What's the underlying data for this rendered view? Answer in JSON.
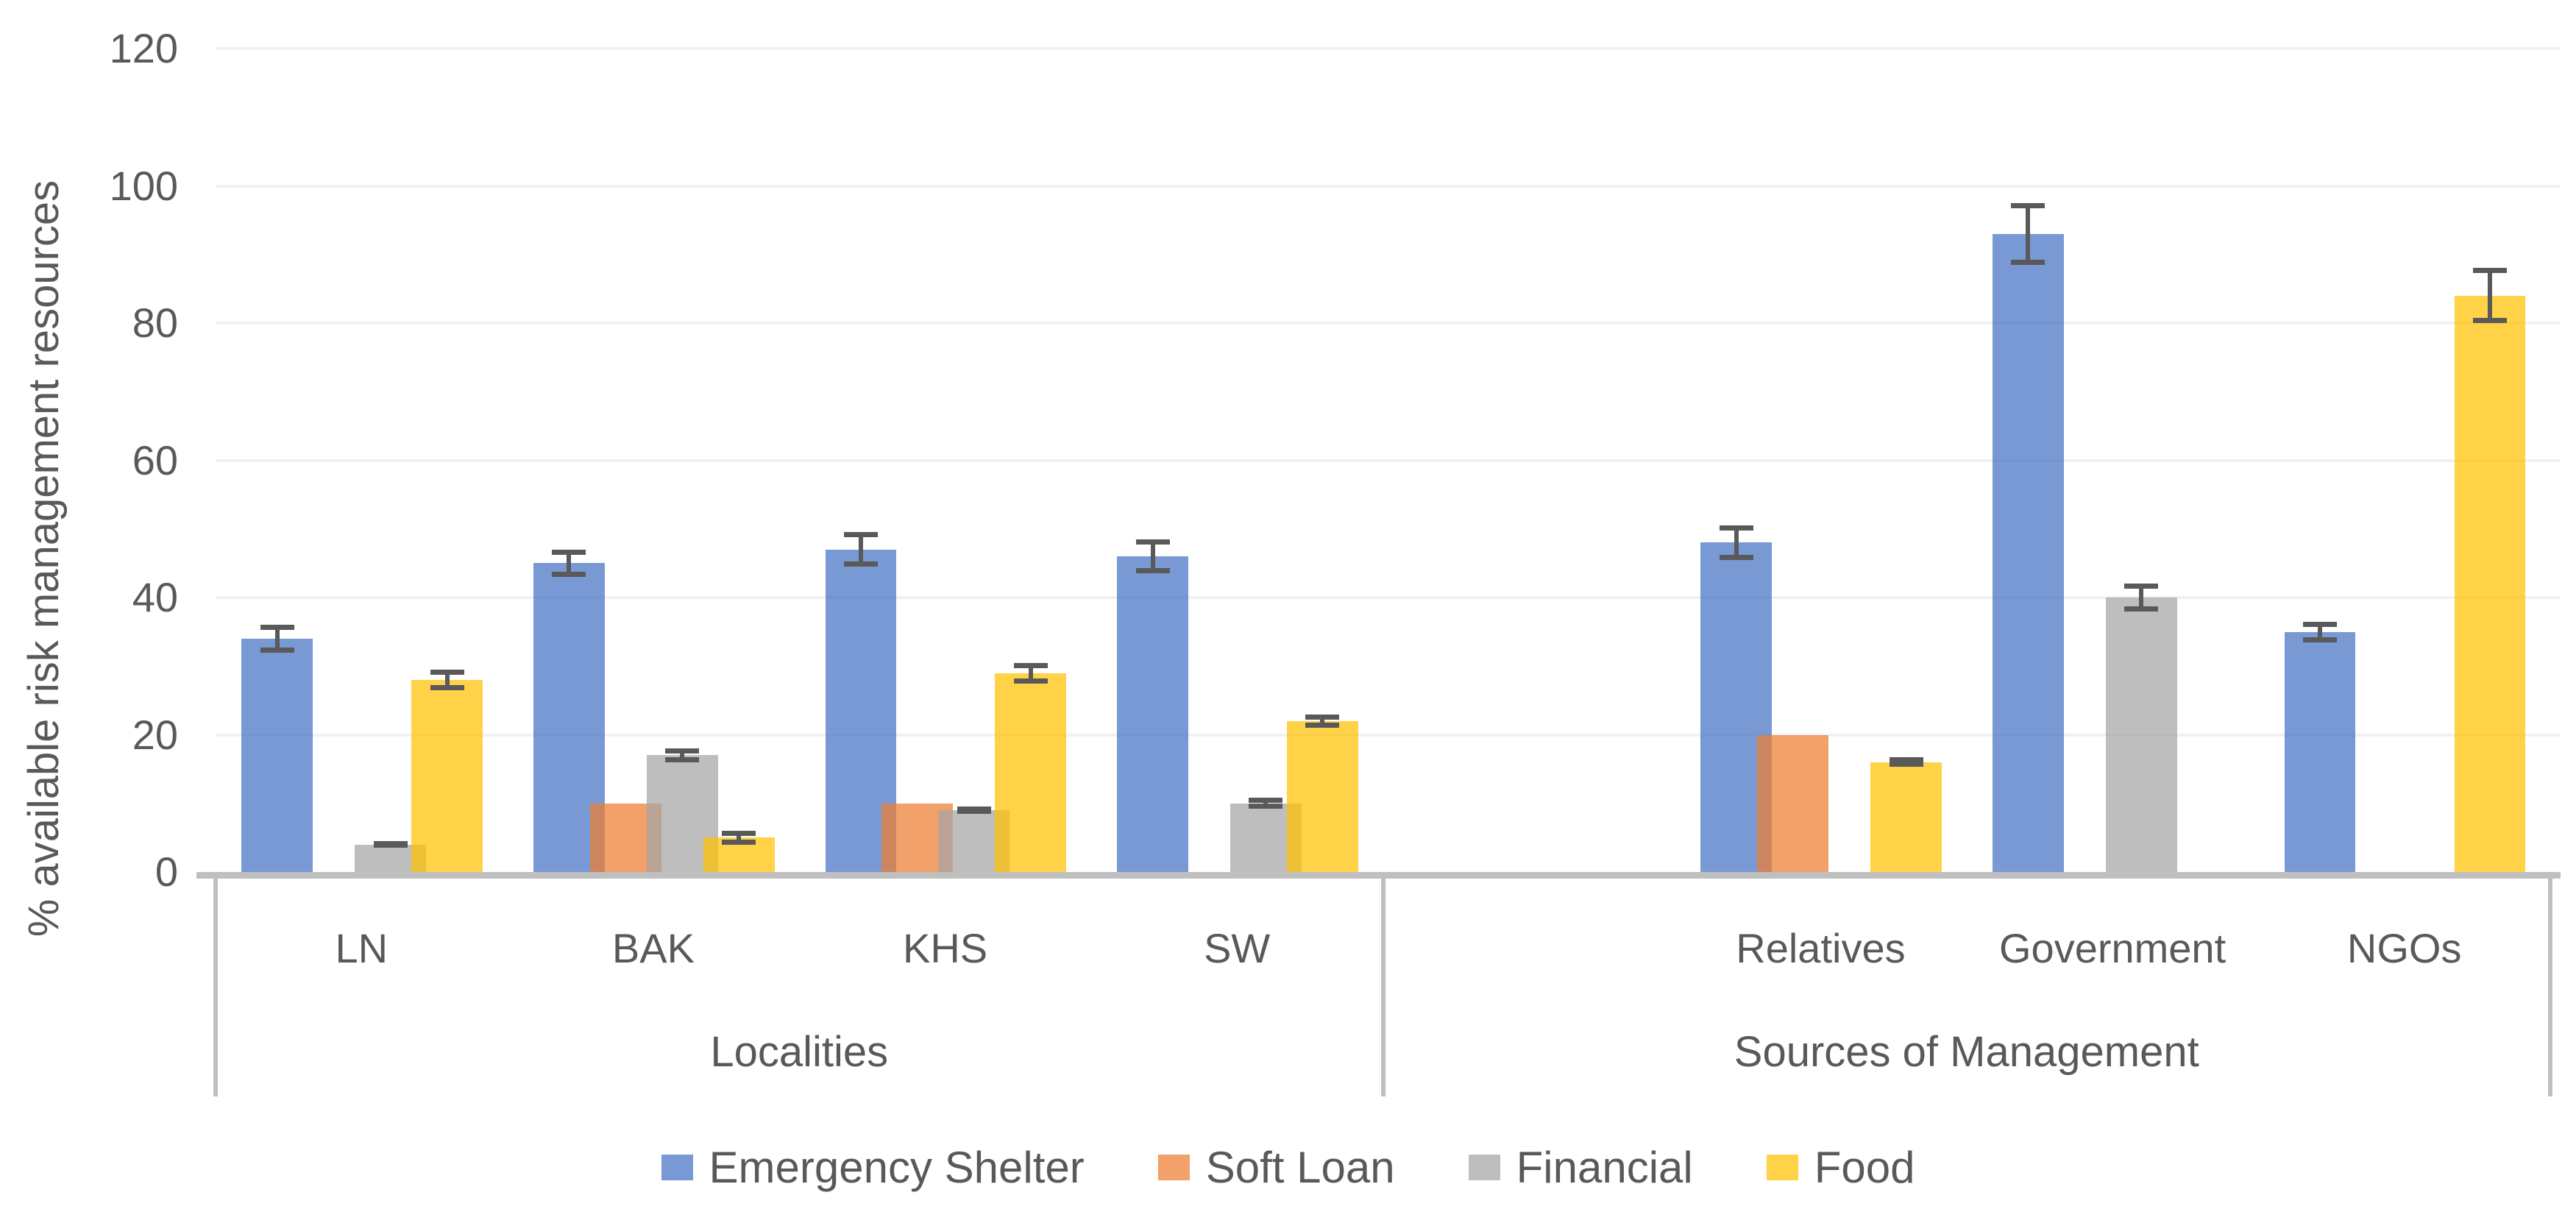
{
  "chart_data": {
    "type": "bar",
    "title": "",
    "ylabel": "% available risk management resources",
    "xlabel": "",
    "ylim": [
      0,
      120
    ],
    "yticks": [
      0,
      20,
      40,
      60,
      80,
      100,
      120
    ],
    "grid": "horizontal",
    "legend_position": "bottom",
    "categories": [
      "LN",
      "BAK",
      "KHS",
      "SW",
      "",
      "Relatives",
      "Government",
      "NGOs"
    ],
    "sections": [
      {
        "label": "Localities",
        "from": 0,
        "to": 3
      },
      {
        "label": "Sources of Management",
        "from": 4,
        "to": 7
      }
    ],
    "series": [
      {
        "name": "Emergency Shelter",
        "color": "#4472C4",
        "values": [
          34,
          45,
          47,
          46,
          null,
          48,
          93,
          35
        ],
        "errors": [
          2,
          2,
          2.5,
          2.5,
          null,
          2.5,
          4.5,
          1.5
        ]
      },
      {
        "name": "Soft Loan",
        "color": "#ED7D31",
        "values": [
          null,
          10,
          10,
          null,
          null,
          20,
          null,
          null
        ],
        "errors": [
          null,
          null,
          null,
          null,
          null,
          null,
          null,
          null
        ]
      },
      {
        "name": "Financial",
        "color": "#A5A5A5",
        "values": [
          4,
          17,
          9,
          10,
          null,
          null,
          40,
          null
        ],
        "errors": [
          0.5,
          1,
          0.5,
          0.8,
          null,
          null,
          2,
          null
        ]
      },
      {
        "name": "Food",
        "color": "#FFC000",
        "values": [
          28,
          5,
          29,
          22,
          null,
          16,
          null,
          84
        ],
        "errors": [
          1.5,
          1,
          1.5,
          1,
          null,
          0.7,
          null,
          4
        ]
      }
    ],
    "style": {
      "bar_alpha": 0.72,
      "error_color": "#595959",
      "axis_color": "#BFBFBF",
      "grid_color": "#F1F1F1",
      "text_color": "#595959",
      "background": "#FFFFFF"
    }
  }
}
